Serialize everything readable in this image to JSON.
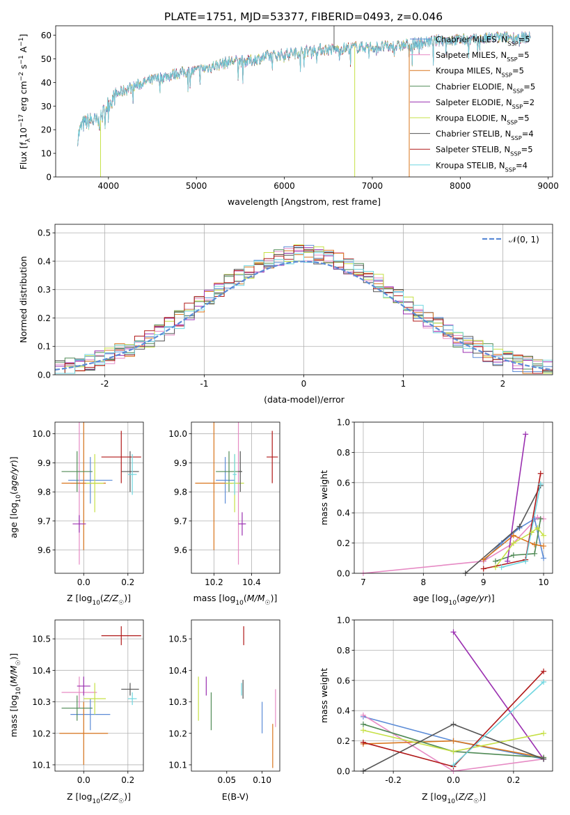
{
  "title": "PLATE=1751, MJD=53377, FIBERID=0493, z=0.046",
  "colors": {
    "chabrier_miles": "#5b8bd6",
    "salpeter_miles": "#e68ac4",
    "kroupa_miles": "#d9751c",
    "chabrier_elodie": "#4f8a55",
    "salpeter_elodie": "#9a2fb0",
    "kroupa_elodie": "#c6e045",
    "chabrier_stelib": "#555555",
    "salpeter_stelib": "#b01818",
    "kroupa_stelib": "#6fd6e0"
  },
  "chart_data": [
    {
      "id": "spectrum",
      "type": "line",
      "xlabel": "wavelength [Angstrom, rest frame]",
      "ylabel": "Flux [f_λ10^-17 erg cm^-2 s^-1 A^-1]",
      "xlim": [
        3400,
        9050
      ],
      "ylim": [
        0,
        64
      ],
      "xticks": [
        4000,
        5000,
        6000,
        7000,
        8000,
        9000
      ],
      "yticks": [
        0,
        10,
        20,
        30,
        40,
        50,
        60
      ],
      "legend_position": "top-right",
      "legend": [
        {
          "text": "Chabrier MILES, N",
          "sub": "SSP",
          "tail": "=5",
          "color_key": "chabrier_miles"
        },
        {
          "text": "Salpeter MILES, N",
          "sub": "SSP",
          "tail": "=5",
          "color_key": "salpeter_miles"
        },
        {
          "text": "Kroupa MILES, N",
          "sub": "SSP",
          "tail": "=5",
          "color_key": "kroupa_miles"
        },
        {
          "text": "Chabrier ELODIE, N",
          "sub": "SSP",
          "tail": "=5",
          "color_key": "chabrier_elodie"
        },
        {
          "text": "Salpeter ELODIE, N",
          "sub": "SSP",
          "tail": "=2",
          "color_key": "salpeter_elodie"
        },
        {
          "text": "Kroupa ELODIE, N",
          "sub": "SSP",
          "tail": "=5",
          "color_key": "kroupa_elodie"
        },
        {
          "text": "Chabrier STELIB, N",
          "sub": "SSP",
          "tail": "=4",
          "color_key": "chabrier_stelib"
        },
        {
          "text": "Salpeter STELIB, N",
          "sub": "SSP",
          "tail": "=5",
          "color_key": "salpeter_stelib"
        },
        {
          "text": "Kroupa STELIB, N",
          "sub": "SSP",
          "tail": "=4",
          "color_key": "kroupa_stelib"
        }
      ],
      "continuum": [
        [
          3650,
          17
        ],
        [
          3700,
          22
        ],
        [
          3800,
          24
        ],
        [
          3900,
          23
        ],
        [
          3950,
          28
        ],
        [
          4000,
          31
        ],
        [
          4100,
          35
        ],
        [
          4200,
          37
        ],
        [
          4400,
          40
        ],
        [
          4600,
          42
        ],
        [
          4800,
          44
        ],
        [
          5000,
          45
        ],
        [
          5200,
          47
        ],
        [
          5400,
          49
        ],
        [
          5600,
          49
        ],
        [
          5800,
          51
        ],
        [
          6000,
          52
        ],
        [
          6200,
          53
        ],
        [
          6400,
          54
        ],
        [
          6600,
          54
        ],
        [
          6800,
          55
        ],
        [
          7000,
          55
        ],
        [
          7200,
          55
        ],
        [
          7400,
          56
        ],
        [
          7600,
          57
        ],
        [
          7800,
          58
        ],
        [
          8000,
          58
        ],
        [
          8200,
          58
        ],
        [
          8400,
          59
        ],
        [
          8600,
          59
        ],
        [
          8800,
          59
        ]
      ],
      "spikes": [
        {
          "x": 3910,
          "y": 0,
          "color_key": "kroupa_elodie"
        },
        {
          "x": 6800,
          "y": 0,
          "color_key": "kroupa_elodie"
        },
        {
          "x": 7420,
          "y": 0,
          "color_key": "kroupa_miles"
        },
        {
          "x": 6565,
          "y": 64,
          "color_key": "chabrier_stelib"
        }
      ]
    },
    {
      "id": "residuals",
      "type": "histogram",
      "xlabel": "(data-model)/error",
      "ylabel": "Normed distribution",
      "xlim": [
        -2.5,
        2.5
      ],
      "ylim": [
        0,
        0.53
      ],
      "xticks": [
        -2,
        -1,
        0,
        1,
        2
      ],
      "yticks": [
        0.0,
        0.1,
        0.2,
        0.3,
        0.4,
        0.5
      ],
      "bin_width": 0.1,
      "grid": true,
      "legend_position": "top-right",
      "reference_curve": {
        "label": "𝒩(0, 1)",
        "color": "#5b8bd6",
        "style": "dashed"
      }
    },
    {
      "id": "age_vs_Z",
      "type": "errorbar",
      "xlabel": "Z [log10(Z/Z☉)]",
      "ylabel": "age [log10(age/yr)]",
      "xlim": [
        -0.13,
        0.27
      ],
      "ylim": [
        9.52,
        10.04
      ],
      "xticks": [
        0.0,
        0.2
      ],
      "yticks": [
        9.6,
        9.7,
        9.8,
        9.9,
        10.0
      ],
      "grid": true,
      "points": [
        {
          "x": 0.03,
          "y": 9.84,
          "xerr": 0.1,
          "yerr": 0.08,
          "color_key": "chabrier_miles"
        },
        {
          "x": -0.02,
          "y": 9.83,
          "xerr": 0.04,
          "yerr": 0.28,
          "color_key": "salpeter_miles"
        },
        {
          "x": 0.0,
          "y": 9.83,
          "xerr": 0.1,
          "yerr": 0.23,
          "color_key": "kroupa_miles"
        },
        {
          "x": -0.03,
          "y": 9.87,
          "xerr": 0.07,
          "yerr": 0.07,
          "color_key": "chabrier_elodie"
        },
        {
          "x": -0.02,
          "y": 9.69,
          "xerr": 0.03,
          "yerr": 0.03,
          "color_key": "salpeter_elodie"
        },
        {
          "x": 0.05,
          "y": 9.83,
          "xerr": 0.04,
          "yerr": 0.1,
          "color_key": "kroupa_elodie"
        },
        {
          "x": 0.21,
          "y": 9.87,
          "xerr": 0.04,
          "yerr": 0.07,
          "color_key": "chabrier_stelib"
        },
        {
          "x": 0.17,
          "y": 9.92,
          "xerr": 0.09,
          "yerr": 0.09,
          "color_key": "salpeter_stelib"
        },
        {
          "x": 0.22,
          "y": 9.86,
          "xerr": 0.02,
          "yerr": 0.07,
          "color_key": "kroupa_stelib"
        }
      ]
    },
    {
      "id": "age_vs_mass",
      "type": "errorbar",
      "xlabel": "mass [log10(M/M☉)]",
      "ylabel": "",
      "xlim": [
        10.08,
        10.55
      ],
      "ylim": [
        9.52,
        10.04
      ],
      "xticks": [
        10.2,
        10.4
      ],
      "yticks": [
        9.6,
        9.7,
        9.8,
        9.9,
        10.0
      ],
      "grid": true,
      "points": [
        {
          "x": 10.26,
          "y": 9.84,
          "xerr": 0.05,
          "yerr": 0.08,
          "color_key": "chabrier_miles"
        },
        {
          "x": 10.33,
          "y": 9.83,
          "xerr": 0.01,
          "yerr": 0.28,
          "color_key": "salpeter_miles"
        },
        {
          "x": 10.2,
          "y": 9.83,
          "xerr": 0.1,
          "yerr": 0.23,
          "color_key": "kroupa_miles"
        },
        {
          "x": 10.28,
          "y": 9.87,
          "xerr": 0.07,
          "yerr": 0.07,
          "color_key": "chabrier_elodie"
        },
        {
          "x": 10.35,
          "y": 9.69,
          "xerr": 0.02,
          "yerr": 0.04,
          "color_key": "salpeter_elodie"
        },
        {
          "x": 10.31,
          "y": 9.83,
          "xerr": 0.05,
          "yerr": 0.1,
          "color_key": "kroupa_elodie"
        },
        {
          "x": 10.34,
          "y": 9.87,
          "xerr": 0.01,
          "yerr": 0.07,
          "color_key": "chabrier_stelib"
        },
        {
          "x": 10.51,
          "y": 9.92,
          "xerr": 0.03,
          "yerr": 0.09,
          "color_key": "salpeter_stelib"
        },
        {
          "x": 10.31,
          "y": 9.86,
          "xerr": 0.01,
          "yerr": 0.07,
          "color_key": "kroupa_stelib"
        }
      ]
    },
    {
      "id": "weight_vs_age",
      "type": "line",
      "xlabel": "age [log10(age/yr)]",
      "ylabel": "mass weight",
      "xlim": [
        6.85,
        10.15
      ],
      "ylim": [
        0,
        1.0
      ],
      "xticks": [
        7,
        8,
        9,
        10
      ],
      "yticks": [
        0.0,
        0.2,
        0.4,
        0.6,
        0.8,
        1.0
      ],
      "grid": true,
      "series": [
        {
          "color_key": "chabrier_miles",
          "x": [
            9.0,
            9.3,
            9.6,
            9.85,
            10.0
          ],
          "y": [
            0.08,
            0.2,
            0.3,
            0.36,
            0.1
          ]
        },
        {
          "color_key": "salpeter_miles",
          "x": [
            7.0,
            9.0,
            9.5,
            9.9,
            10.0
          ],
          "y": [
            0.0,
            0.08,
            0.2,
            0.37,
            0.36
          ]
        },
        {
          "color_key": "kroupa_miles",
          "x": [
            9.0,
            9.5,
            9.85,
            10.0
          ],
          "y": [
            0.09,
            0.25,
            0.19,
            0.18
          ]
        },
        {
          "color_key": "chabrier_elodie",
          "x": [
            9.2,
            9.5,
            9.85,
            9.95
          ],
          "y": [
            0.08,
            0.12,
            0.13,
            0.36
          ]
        },
        {
          "color_key": "salpeter_elodie",
          "x": [
            9.4,
            9.7
          ],
          "y": [
            0.08,
            0.92
          ]
        },
        {
          "color_key": "kroupa_elodie",
          "x": [
            9.2,
            9.5,
            9.8,
            9.9,
            10.0
          ],
          "y": [
            0.04,
            0.2,
            0.27,
            0.3,
            0.25
          ]
        },
        {
          "color_key": "chabrier_stelib",
          "x": [
            8.7,
            9.6,
            9.95
          ],
          "y": [
            0.0,
            0.31,
            0.58
          ]
        },
        {
          "color_key": "salpeter_stelib",
          "x": [
            9.0,
            9.7,
            9.95
          ],
          "y": [
            0.03,
            0.09,
            0.66
          ]
        },
        {
          "color_key": "kroupa_stelib",
          "x": [
            9.3,
            9.7,
            9.95
          ],
          "y": [
            0.04,
            0.08,
            0.59
          ]
        }
      ]
    },
    {
      "id": "mass_vs_Z",
      "type": "errorbar",
      "xlabel": "Z [log10(Z/Z☉)]",
      "ylabel": "mass [log10(M/M☉)]",
      "xlim": [
        -0.13,
        0.27
      ],
      "ylim": [
        10.08,
        10.56
      ],
      "xticks": [
        0.0,
        0.2
      ],
      "yticks": [
        10.1,
        10.2,
        10.3,
        10.4,
        10.5
      ],
      "grid": true,
      "points": [
        {
          "x": 0.03,
          "y": 10.26,
          "xerr": 0.09,
          "yerr": 0.05,
          "color_key": "chabrier_miles"
        },
        {
          "x": -0.02,
          "y": 10.33,
          "xerr": 0.08,
          "yerr": 0.05,
          "color_key": "salpeter_miles"
        },
        {
          "x": 0.0,
          "y": 10.2,
          "xerr": 0.11,
          "yerr": 0.1,
          "color_key": "kroupa_miles"
        },
        {
          "x": -0.03,
          "y": 10.28,
          "xerr": 0.07,
          "yerr": 0.04,
          "color_key": "chabrier_elodie"
        },
        {
          "x": 0.0,
          "y": 10.35,
          "xerr": 0.03,
          "yerr": 0.03,
          "color_key": "salpeter_elodie"
        },
        {
          "x": 0.05,
          "y": 10.31,
          "xerr": 0.05,
          "yerr": 0.05,
          "color_key": "kroupa_elodie"
        },
        {
          "x": 0.21,
          "y": 10.34,
          "xerr": 0.04,
          "yerr": 0.02,
          "color_key": "chabrier_stelib"
        },
        {
          "x": 0.17,
          "y": 10.51,
          "xerr": 0.09,
          "yerr": 0.03,
          "color_key": "salpeter_stelib"
        },
        {
          "x": 0.22,
          "y": 10.31,
          "xerr": 0.02,
          "yerr": 0.02,
          "color_key": "kroupa_stelib"
        }
      ]
    },
    {
      "id": "mass_vs_ebv",
      "type": "errorbar",
      "xlabel": "E(B-V)",
      "ylabel": "",
      "xlim": [
        0.0,
        0.125
      ],
      "ylim": [
        10.08,
        10.56
      ],
      "xticks": [
        0.05,
        0.1
      ],
      "yticks": [
        10.1,
        10.2,
        10.3,
        10.4,
        10.5
      ],
      "grid": false,
      "points": [
        {
          "x": 0.1,
          "y": 10.25,
          "yerr": 0.05,
          "color_key": "chabrier_miles"
        },
        {
          "x": 0.119,
          "y": 10.28,
          "yerr": 0.06,
          "color_key": "salpeter_miles"
        },
        {
          "x": 0.115,
          "y": 10.16,
          "yerr": 0.07,
          "color_key": "kroupa_miles"
        },
        {
          "x": 0.028,
          "y": 10.27,
          "yerr": 0.06,
          "color_key": "chabrier_elodie"
        },
        {
          "x": 0.021,
          "y": 10.35,
          "yerr": 0.03,
          "color_key": "salpeter_elodie"
        },
        {
          "x": 0.01,
          "y": 10.31,
          "yerr": 0.07,
          "color_key": "kroupa_elodie"
        },
        {
          "x": 0.073,
          "y": 10.34,
          "yerr": 0.03,
          "color_key": "chabrier_stelib"
        },
        {
          "x": 0.074,
          "y": 10.51,
          "yerr": 0.03,
          "color_key": "salpeter_stelib"
        },
        {
          "x": 0.071,
          "y": 10.34,
          "yerr": 0.02,
          "color_key": "kroupa_stelib"
        }
      ]
    },
    {
      "id": "weight_vs_Z",
      "type": "line",
      "xlabel": "Z [log10(Z/Z☉)]",
      "ylabel": "mass weight",
      "xlim": [
        -0.33,
        0.33
      ],
      "ylim": [
        0,
        1.0
      ],
      "xticks": [
        -0.2,
        0.0,
        0.2
      ],
      "yticks": [
        0.0,
        0.2,
        0.4,
        0.6,
        0.8,
        1.0
      ],
      "grid": true,
      "series": [
        {
          "color_key": "chabrier_miles",
          "x": [
            -0.3,
            0.0,
            0.3
          ],
          "y": [
            0.36,
            0.2,
            0.08
          ]
        },
        {
          "color_key": "salpeter_miles",
          "x": [
            -0.3,
            0.0,
            0.3
          ],
          "y": [
            0.37,
            0.0,
            0.08
          ]
        },
        {
          "color_key": "kroupa_miles",
          "x": [
            -0.3,
            0.0,
            0.3
          ],
          "y": [
            0.18,
            0.2,
            0.09
          ]
        },
        {
          "color_key": "chabrier_elodie",
          "x": [
            -0.3,
            0.0,
            0.3
          ],
          "y": [
            0.31,
            0.13,
            0.09
          ]
        },
        {
          "color_key": "salpeter_elodie",
          "x": [
            0.0,
            0.3
          ],
          "y": [
            0.92,
            0.08
          ]
        },
        {
          "color_key": "kroupa_elodie",
          "x": [
            -0.3,
            0.0,
            0.3
          ],
          "y": [
            0.27,
            0.13,
            0.25
          ]
        },
        {
          "color_key": "chabrier_stelib",
          "x": [
            -0.3,
            0.0,
            0.3
          ],
          "y": [
            0.0,
            0.31,
            0.08
          ]
        },
        {
          "color_key": "salpeter_stelib",
          "x": [
            -0.3,
            0.0,
            0.3
          ],
          "y": [
            0.19,
            0.03,
            0.66
          ]
        },
        {
          "color_key": "kroupa_stelib",
          "x": [
            0.0,
            0.3
          ],
          "y": [
            0.04,
            0.59
          ]
        }
      ]
    }
  ]
}
